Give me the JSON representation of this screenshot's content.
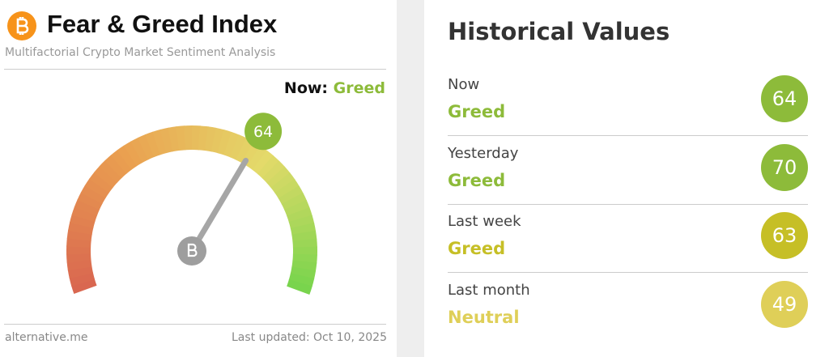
{
  "header": {
    "title": "Fear & Greed Index",
    "subtitle": "Multifactorial Crypto Market Sentiment Analysis"
  },
  "now": {
    "label": "Now:",
    "classification": "Greed",
    "value": 64,
    "color": "#8dbb3a"
  },
  "footer": {
    "source": "alternative.me",
    "updated": "Last updated: Oct 10, 2025"
  },
  "historical": {
    "title": "Historical Values",
    "rows": [
      {
        "period": "Now",
        "classification": "Greed",
        "value": 64,
        "color": "#8dbb3a"
      },
      {
        "period": "Yesterday",
        "classification": "Greed",
        "value": 70,
        "color": "#8dbb3a"
      },
      {
        "period": "Last week",
        "classification": "Greed",
        "value": 63,
        "color": "#c6bf26"
      },
      {
        "period": "Last month",
        "classification": "Neutral",
        "value": 49,
        "color": "#dfcf58"
      }
    ]
  }
}
